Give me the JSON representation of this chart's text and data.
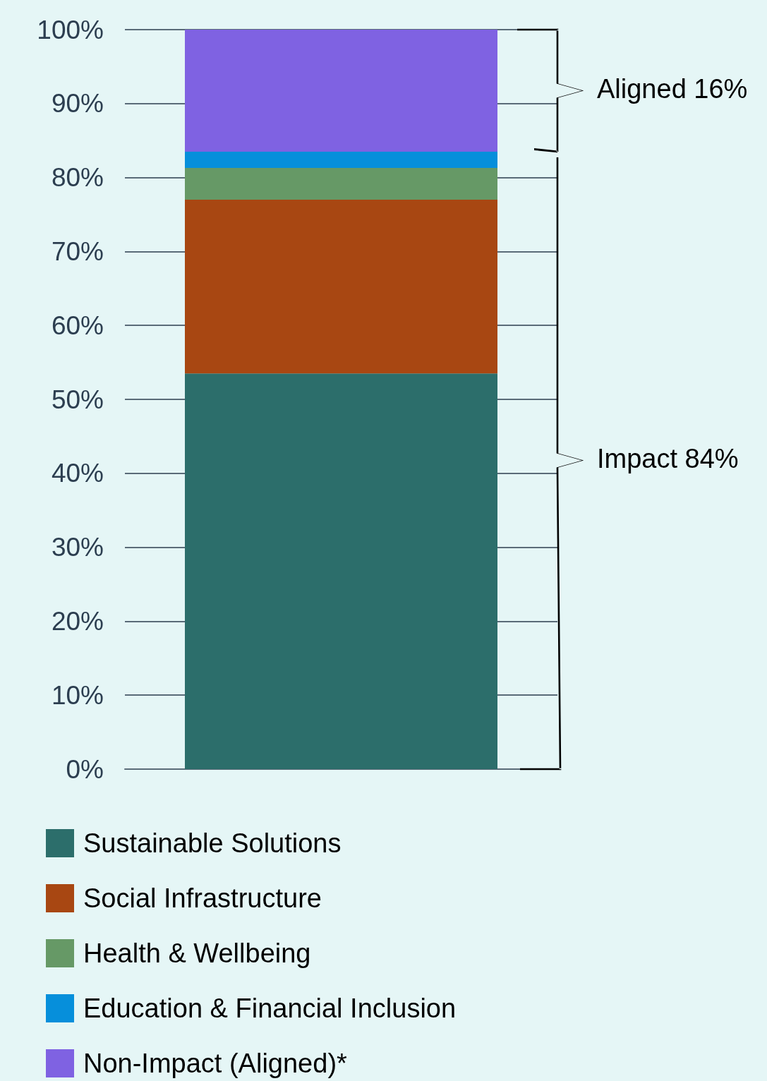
{
  "chart_data": {
    "type": "bar",
    "stacked": true,
    "categories": [
      null
    ],
    "series": [
      {
        "name": "Sustainable Solutions",
        "color": "#2c6e6b",
        "values": [
          53.5
        ]
      },
      {
        "name": "Social Infrastructure",
        "color": "#a84712",
        "values": [
          23.5
        ]
      },
      {
        "name": "Health & Wellbeing",
        "color": "#669966",
        "values": [
          4.3
        ]
      },
      {
        "name": "Education & Financial Inclusion",
        "color": "#068fdb",
        "values": [
          2.2
        ]
      },
      {
        "name": "Non-Impact (Aligned)*",
        "color": "#7f62e2",
        "values": [
          16.5
        ]
      }
    ],
    "ylim": [
      0,
      100
    ],
    "yticks": [
      {
        "value": 0,
        "label": "0%"
      },
      {
        "value": 10,
        "label": "10%"
      },
      {
        "value": 20,
        "label": "20%"
      },
      {
        "value": 30,
        "label": "30%"
      },
      {
        "value": 40,
        "label": "40%"
      },
      {
        "value": 50,
        "label": "50%"
      },
      {
        "value": 60,
        "label": "60%"
      },
      {
        "value": 70,
        "label": "70%"
      },
      {
        "value": 80,
        "label": "80%"
      },
      {
        "value": 90,
        "label": "90%"
      },
      {
        "value": 100,
        "label": "100%"
      }
    ],
    "grid": "y",
    "legend": "bottom left",
    "annotations": [
      "Aligned 16%",
      "Impact 84%"
    ]
  }
}
